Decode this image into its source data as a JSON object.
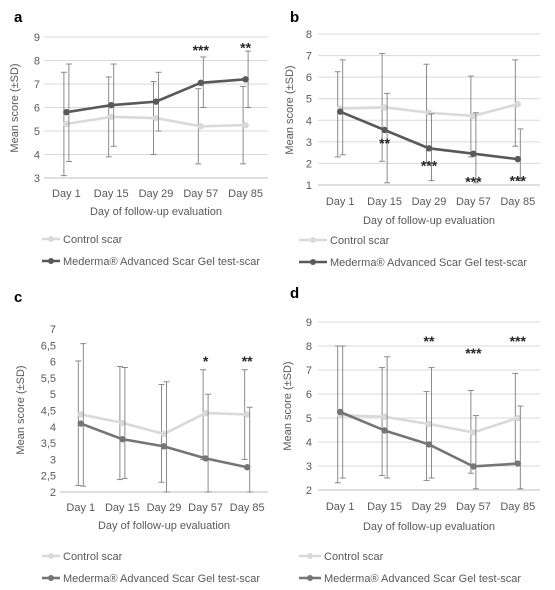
{
  "chart_data": [
    {
      "panel_label": "a",
      "type": "line",
      "categories": [
        "Day 1",
        "Day 15",
        "Day 29",
        "Day 57",
        "Day 85"
      ],
      "xlabel": "Day of follow-up evaluation",
      "ylabel": "Mean score (±SD)",
      "ylim": [
        3,
        9
      ],
      "yticks": [
        "3",
        "4",
        "5",
        "6",
        "7",
        "8",
        "9"
      ],
      "grid": true,
      "legend_placement": "bottom",
      "series": [
        {
          "name": "Control scar",
          "color": "#d9d9d9",
          "values": [
            5.3,
            5.6,
            5.55,
            5.2,
            5.25
          ],
          "sd_low": [
            3.1,
            3.9,
            4.0,
            3.6,
            3.6
          ],
          "sd_high": [
            7.5,
            7.3,
            7.1,
            6.8,
            6.9
          ]
        },
        {
          "name": "Mederma® Advanced Scar Gel test-scar",
          "color": "#595959",
          "values": [
            5.8,
            6.1,
            6.25,
            7.05,
            7.2
          ],
          "sd_low": [
            3.7,
            4.35,
            5.0,
            6.0,
            6.0
          ],
          "sd_high": [
            7.85,
            7.85,
            7.5,
            8.15,
            8.4
          ]
        }
      ],
      "annotations": [
        {
          "category": "Day 57",
          "text": "***",
          "y": 8.5
        },
        {
          "category": "Day 85",
          "text": "**",
          "y": 8.6
        }
      ]
    },
    {
      "panel_label": "b",
      "type": "line",
      "categories": [
        "Day 1",
        "Day 15",
        "Day 29",
        "Day 57",
        "Day 85"
      ],
      "xlabel": "Day of follow-up evaluation",
      "ylabel": "Mean score (±SD)",
      "ylim": [
        1,
        8
      ],
      "yticks": [
        "1",
        "2",
        "3",
        "4",
        "5",
        "6",
        "7",
        "8"
      ],
      "grid": true,
      "legend_placement": "bottom",
      "series": [
        {
          "name": "Control scar",
          "color": "#d9d9d9",
          "values": [
            4.55,
            4.6,
            4.35,
            4.2,
            4.75
          ],
          "sd_low": [
            2.3,
            2.1,
            2.05,
            2.3,
            2.8
          ],
          "sd_high": [
            6.25,
            7.1,
            6.6,
            6.05,
            6.8
          ]
        },
        {
          "name": "Mederma® Advanced Scar Gel test-scar",
          "color": "#595959",
          "values": [
            4.4,
            3.55,
            2.7,
            2.45,
            2.2
          ],
          "sd_low": [
            2.4,
            1.1,
            1.2,
            1.1,
            1.2
          ],
          "sd_high": [
            6.8,
            5.25,
            4.3,
            4.35,
            3.6
          ]
        }
      ],
      "annotations": [
        {
          "category": "Day 15",
          "text": "**",
          "y": 3.0
        },
        {
          "category": "Day 29",
          "text": "***",
          "y": 1.95
        },
        {
          "category": "Day 57",
          "text": "***",
          "y": 1.2
        },
        {
          "category": "Day 85",
          "text": "***",
          "y": 1.25
        }
      ]
    },
    {
      "panel_label": "c",
      "type": "line",
      "categories": [
        "Day 1",
        "Day 15",
        "Day 29",
        "Day 57",
        "Day 85"
      ],
      "xlabel": "Day of follow-up evaluation",
      "ylabel": "Mean score (±SD)",
      "ylim": [
        2,
        7
      ],
      "yticks": [
        "2",
        "2,5",
        "3",
        "3,5",
        "4",
        "4,5",
        "5",
        "5,5",
        "6",
        "6,5",
        "7"
      ],
      "grid": false,
      "legend_placement": "bottom",
      "series": [
        {
          "name": "Control scar",
          "color": "#d9d9d9",
          "values": [
            4.38,
            4.12,
            3.78,
            4.42,
            4.38
          ],
          "sd_low": [
            2.2,
            2.38,
            2.3,
            3.0,
            3.0
          ],
          "sd_high": [
            6.02,
            5.85,
            5.3,
            5.75,
            5.75
          ]
        },
        {
          "name": "Mederma® Advanced Scar Gel test-scar",
          "color": "#757575",
          "values": [
            4.1,
            3.62,
            3.4,
            3.03,
            2.76
          ],
          "sd_low": [
            2.18,
            2.42,
            2.0,
            2.0,
            2.0
          ],
          "sd_high": [
            6.55,
            5.82,
            5.38,
            5.0,
            4.6
          ]
        }
      ],
      "annotations": [
        {
          "category": "Day 57",
          "text": "*",
          "y": 6.05
        },
        {
          "category": "Day 85",
          "text": "**",
          "y": 6.05
        }
      ]
    },
    {
      "panel_label": "d",
      "type": "line",
      "categories": [
        "Day 1",
        "Day 15",
        "Day 29",
        "Day 57",
        "Day 85"
      ],
      "xlabel": "Day of follow-up evaluation",
      "ylabel": "Mean score (±SD)",
      "ylim": [
        2,
        9
      ],
      "yticks": [
        "2",
        "3",
        "4",
        "5",
        "6",
        "7",
        "8",
        "9"
      ],
      "grid": true,
      "legend_placement": "bottom",
      "series": [
        {
          "name": "Control scar",
          "color": "#d9d9d9",
          "values": [
            5.12,
            5.05,
            4.75,
            4.4,
            5.0
          ],
          "sd_low": [
            2.3,
            2.6,
            2.4,
            2.7,
            3.1
          ],
          "sd_high": [
            8.0,
            7.1,
            6.1,
            6.15,
            6.85
          ]
        },
        {
          "name": "Mederma® Advanced Scar Gel test-scar",
          "color": "#757575",
          "values": [
            5.25,
            4.48,
            3.9,
            2.98,
            3.1
          ],
          "sd_low": [
            2.5,
            2.5,
            2.5,
            2.05,
            2.05
          ],
          "sd_high": [
            8.0,
            7.55,
            7.1,
            5.1,
            5.5
          ]
        }
      ],
      "annotations": [
        {
          "category": "Day 29",
          "text": "**",
          "y": 8.25
        },
        {
          "category": "Day 57",
          "text": "***",
          "y": 7.75
        },
        {
          "category": "Day 85",
          "text": "***",
          "y": 8.25
        }
      ]
    }
  ]
}
